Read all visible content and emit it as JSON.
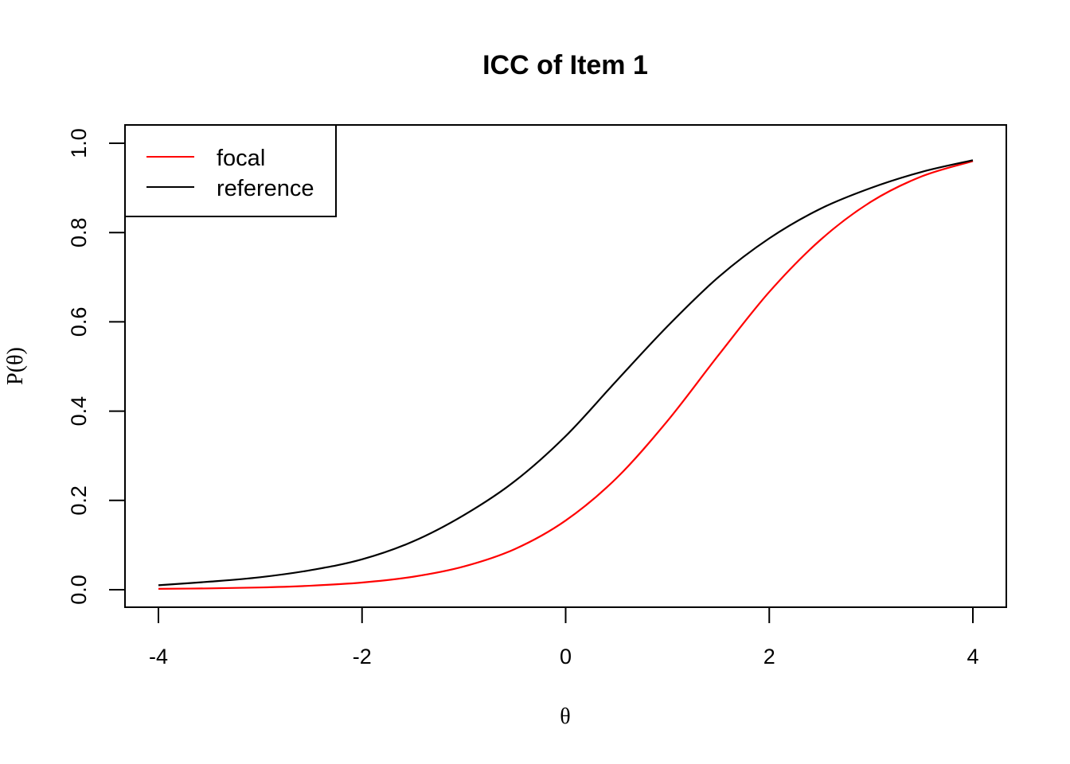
{
  "chart_data": {
    "type": "line",
    "title": "ICC of Item 1",
    "xlabel": "θ",
    "ylabel": "P(θ)",
    "xlim": [
      -4,
      4
    ],
    "ylim": [
      0,
      1
    ],
    "x_ticks": [
      -4,
      -2,
      0,
      2,
      4
    ],
    "x_tick_labels": [
      "-4",
      "-2",
      "0",
      "2",
      "4"
    ],
    "y_ticks": [
      0,
      0.2,
      0.4,
      0.6,
      0.8,
      1.0
    ],
    "y_tick_labels": [
      "0.0",
      "0.2",
      "0.4",
      "0.6",
      "0.8",
      "1.0"
    ],
    "grid": false,
    "legend_position": "top-left",
    "x": [
      -4,
      -3.5,
      -3,
      -2.5,
      -2,
      -1.5,
      -1,
      -0.5,
      0,
      0.5,
      1,
      1.5,
      2,
      2.5,
      3,
      3.5,
      4
    ],
    "series": [
      {
        "name": "focal",
        "color": "#ff0000",
        "values": [
          0.002,
          0.003,
          0.005,
          0.009,
          0.016,
          0.029,
          0.052,
          0.091,
          0.155,
          0.25,
          0.378,
          0.525,
          0.667,
          0.783,
          0.869,
          0.926,
          0.96
        ]
      },
      {
        "name": "reference",
        "color": "#000000",
        "values": [
          0.01,
          0.018,
          0.028,
          0.044,
          0.068,
          0.108,
          0.167,
          0.243,
          0.344,
          0.468,
          0.59,
          0.7,
          0.787,
          0.853,
          0.9,
          0.936,
          0.962
        ]
      }
    ]
  }
}
